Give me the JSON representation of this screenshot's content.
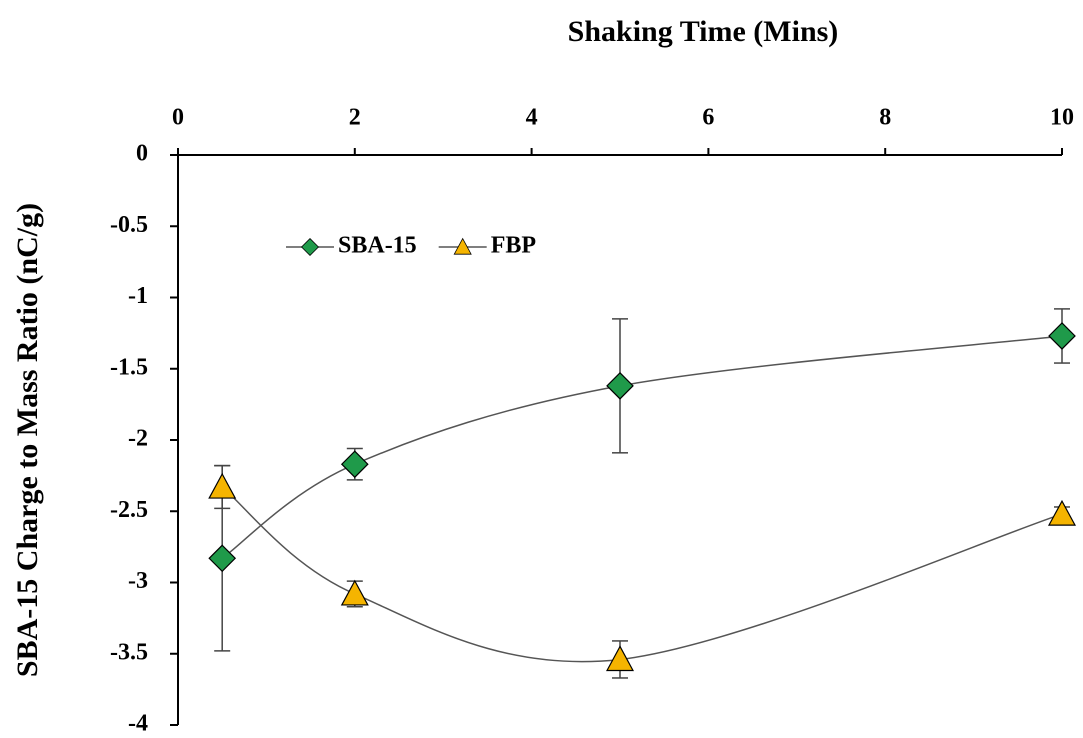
{
  "chart_data": {
    "type": "line",
    "title": "Shaking Time (Mins)",
    "y_label": "SBA-15 Charge to Mass Ratio (nC/g)",
    "x": [
      0.5,
      2,
      5,
      10
    ],
    "series": [
      {
        "name": "SBA-15",
        "color": "#1f9a4a",
        "marker": "diamond",
        "values": [
          -2.83,
          -2.17,
          -1.62,
          -1.27
        ],
        "errors": [
          0.65,
          0.11,
          0.47,
          0.19
        ]
      },
      {
        "name": "FBP",
        "color": "#f5b400",
        "marker": "triangle",
        "values": [
          -2.33,
          -3.08,
          -3.54,
          -2.52
        ],
        "errors": [
          0.15,
          0.09,
          0.13,
          0.05
        ]
      }
    ],
    "xlim": [
      0,
      10
    ],
    "xticks": [
      0,
      2,
      4,
      6,
      8,
      10
    ],
    "ylim": [
      -4,
      0
    ],
    "yticks": [
      0,
      -0.5,
      -1,
      -1.5,
      -2,
      -2.5,
      -3,
      -3.5,
      -4
    ],
    "x_axis_position": "top",
    "grid": false,
    "smooth": true,
    "legend": "upper left"
  }
}
